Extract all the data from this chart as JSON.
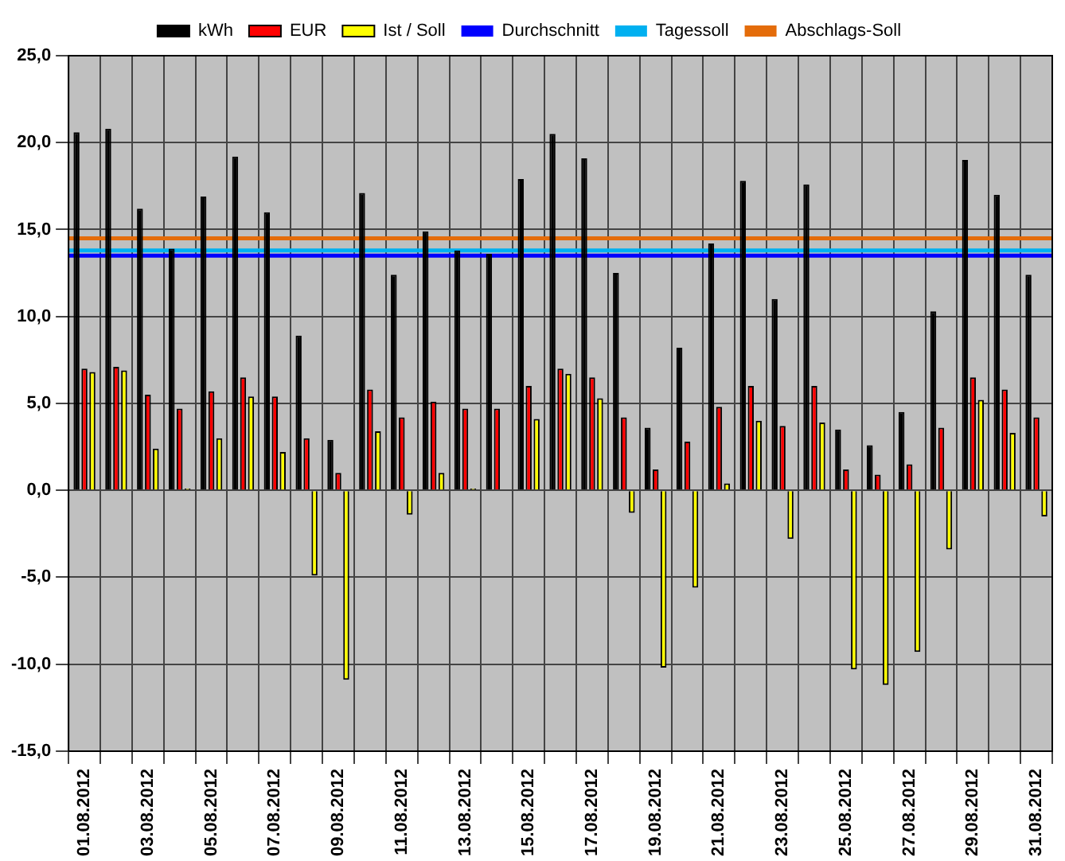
{
  "chart_data": {
    "type": "bar",
    "categories": [
      "01.08.2012",
      null,
      "03.08.2012",
      null,
      "05.08.2012",
      null,
      "07.08.2012",
      null,
      "09.08.2012",
      null,
      "11.08.2012",
      null,
      "13.08.2012",
      null,
      "15.08.2012",
      null,
      "17.08.2012",
      null,
      "19.08.2012",
      null,
      "21.08.2012",
      null,
      "23.08.2012",
      null,
      "25.08.2012",
      null,
      "27.08.2012",
      null,
      "29.08.2012",
      null,
      "31.08.2012"
    ],
    "series": [
      {
        "name": "kWh",
        "color": "#000000",
        "values": [
          20.6,
          20.8,
          16.2,
          13.9,
          16.9,
          19.2,
          16.0,
          8.9,
          2.9,
          17.1,
          12.4,
          14.9,
          13.8,
          13.6,
          17.9,
          20.5,
          19.1,
          12.5,
          3.6,
          8.2,
          14.2,
          17.8,
          11.0,
          17.6,
          3.5,
          2.6,
          4.5,
          10.3,
          19.0,
          17.0,
          12.4
        ]
      },
      {
        "name": "EUR",
        "color": "#ff0000",
        "values": [
          7.0,
          7.1,
          5.5,
          4.7,
          5.7,
          6.5,
          5.4,
          3.0,
          1.0,
          5.8,
          4.2,
          5.1,
          4.7,
          4.7,
          6.0,
          7.0,
          6.5,
          4.2,
          1.2,
          2.8,
          4.8,
          6.0,
          3.7,
          6.0,
          1.2,
          0.9,
          1.5,
          3.6,
          6.5,
          5.8,
          4.2
        ]
      },
      {
        "name": "Ist / Soll",
        "color": "#ffff00",
        "values": [
          6.8,
          6.9,
          2.4,
          0.1,
          3.0,
          5.4,
          2.2,
          -4.9,
          -10.9,
          3.4,
          -1.4,
          1.0,
          0.1,
          0.0,
          4.1,
          6.7,
          5.3,
          -1.3,
          -10.2,
          -5.6,
          0.4,
          4.0,
          -2.8,
          3.9,
          -10.3,
          -11.2,
          -9.3,
          -3.4,
          5.2,
          3.3,
          -1.5
        ]
      }
    ],
    "ref_lines": [
      {
        "axis": "y",
        "value": 13.5,
        "label": "Durchschnitt",
        "color": "#0000ff"
      },
      {
        "axis": "y",
        "value": 13.8,
        "label": "Tagessoll",
        "color": "#00b0f0"
      },
      {
        "axis": "y",
        "value": 14.5,
        "label": "Abschlags-Soll",
        "color": "#e46c0a"
      }
    ],
    "ylim": [
      -15,
      25
    ],
    "yticks": [
      {
        "value": -15,
        "label": "-15,0"
      },
      {
        "value": -10,
        "label": "-10,0"
      },
      {
        "value": -5,
        "label": "-5,0"
      },
      {
        "value": 0,
        "label": "0,0"
      },
      {
        "value": 5,
        "label": "5,0"
      },
      {
        "value": 10,
        "label": "10,0"
      },
      {
        "value": 15,
        "label": "15,0"
      },
      {
        "value": 20,
        "label": "20,0"
      },
      {
        "value": 25,
        "label": "25,0"
      }
    ],
    "grid": true,
    "legend": "top"
  }
}
